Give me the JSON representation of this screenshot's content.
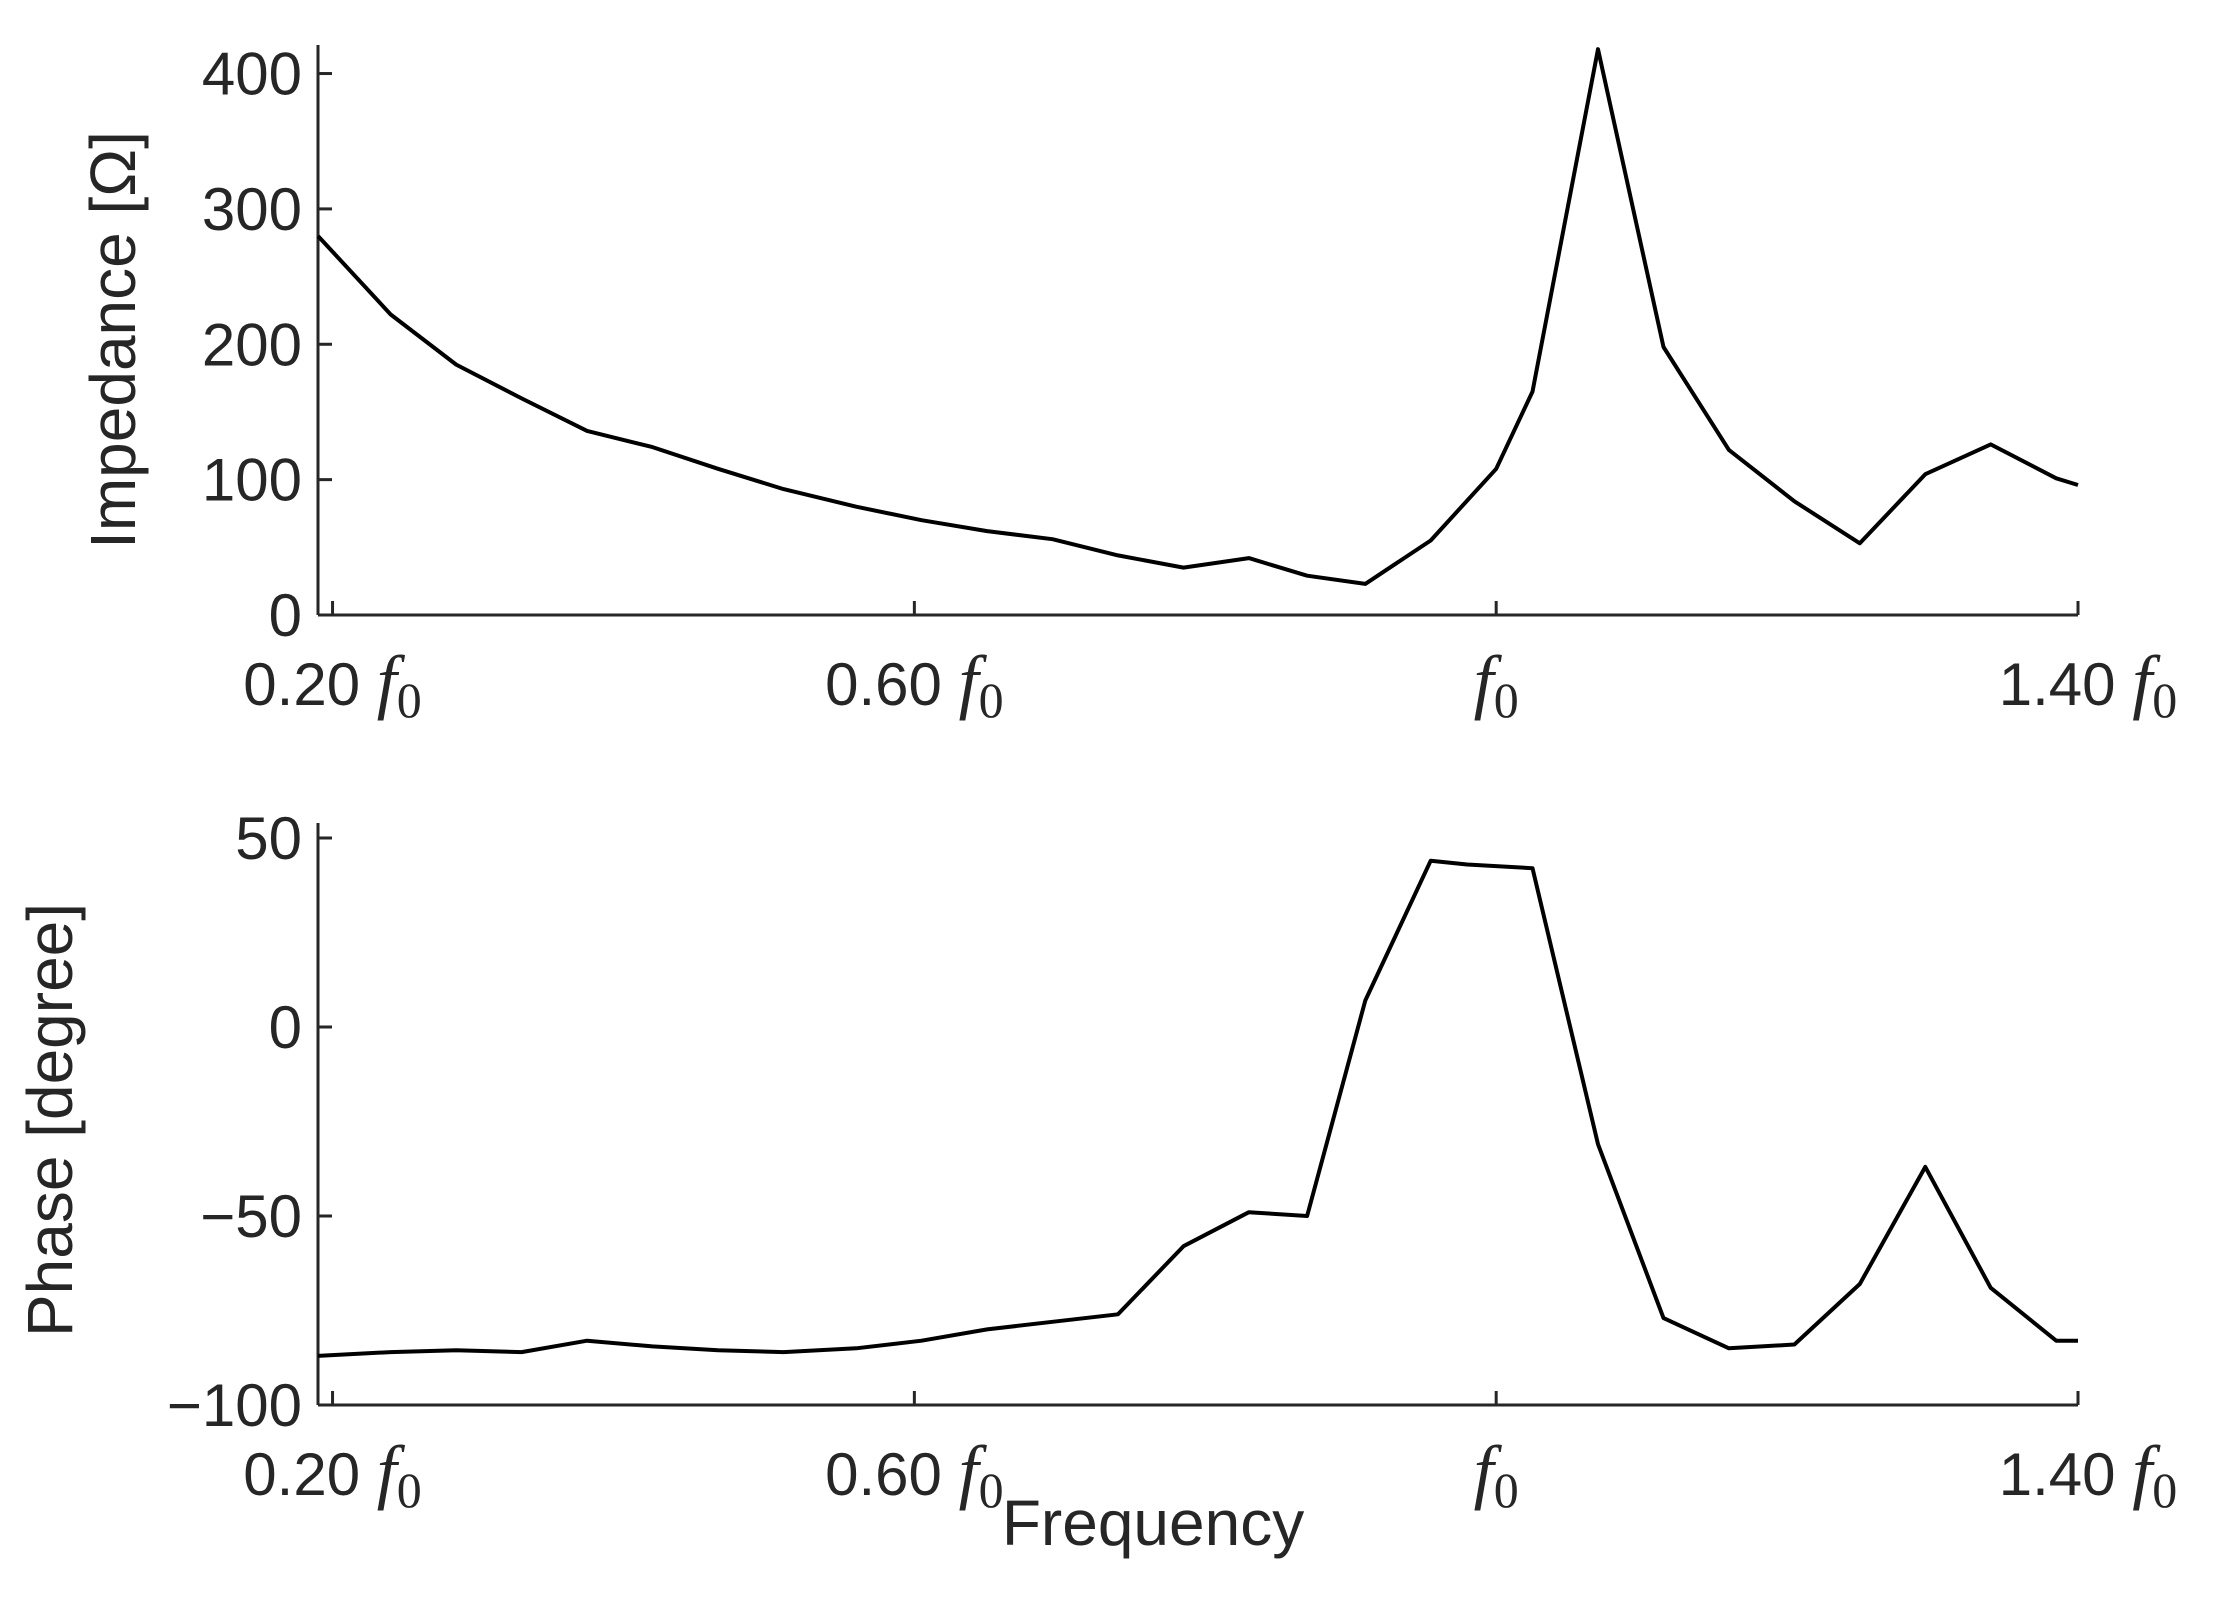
{
  "chart_data": [
    {
      "type": "line",
      "ylabel": "Impedance [Ω]",
      "xlabel": "",
      "xlim": [
        0.19,
        1.4
      ],
      "ylim": [
        0,
        410
      ],
      "yticks": [
        0,
        100,
        200,
        300,
        400
      ],
      "ytick_labels": [
        "0",
        "100",
        "200",
        "300",
        "400"
      ],
      "xticks": [
        0.2,
        0.6,
        1.0,
        1.4
      ],
      "xtick_labels": [
        {
          "num": "0.20",
          "f": "f",
          "sub": "0"
        },
        {
          "num": "0.60",
          "f": "f",
          "sub": "0"
        },
        {
          "num": "",
          "f": "f",
          "sub": "0"
        },
        {
          "num": "1.40",
          "f": "f",
          "sub": "0"
        }
      ],
      "grid": false,
      "series": [
        {
          "color": "#000000",
          "x": [
            0.19,
            0.24,
            0.285,
            0.33,
            0.375,
            0.42,
            0.465,
            0.51,
            0.56,
            0.605,
            0.65,
            0.695,
            0.74,
            0.785,
            0.83,
            0.87,
            0.91,
            0.955,
            1.0,
            1.025,
            1.07,
            1.115,
            1.16,
            1.205,
            1.25,
            1.295,
            1.34,
            1.385,
            1.4
          ],
          "y": [
            280,
            222,
            185,
            160,
            136,
            124,
            108,
            93,
            80,
            70,
            62,
            56,
            44,
            35,
            42,
            29,
            23,
            55,
            108,
            165,
            418,
            198,
            122,
            84,
            53,
            104,
            126,
            101,
            96
          ]
        }
      ]
    },
    {
      "type": "line",
      "ylabel": "Phase [degree]",
      "xlabel": "Frequency",
      "xlim": [
        0.19,
        1.4
      ],
      "ylim": [
        -100,
        50
      ],
      "yticks": [
        -100,
        -50,
        0,
        50
      ],
      "ytick_labels": [
        "−100",
        "−50",
        "0",
        "50"
      ],
      "xticks": [
        0.2,
        0.6,
        1.0,
        1.4
      ],
      "xtick_labels": [
        {
          "num": "0.20",
          "f": "f",
          "sub": "0"
        },
        {
          "num": "0.60",
          "f": "f",
          "sub": "0"
        },
        {
          "num": "",
          "f": "f",
          "sub": "0"
        },
        {
          "num": "1.40",
          "f": "f",
          "sub": "0"
        }
      ],
      "grid": false,
      "series": [
        {
          "color": "#000000",
          "x": [
            0.19,
            0.24,
            0.285,
            0.33,
            0.375,
            0.42,
            0.465,
            0.51,
            0.56,
            0.605,
            0.65,
            0.695,
            0.74,
            0.785,
            0.83,
            0.87,
            0.91,
            0.955,
            0.98,
            1.025,
            1.07,
            1.115,
            1.16,
            1.205,
            1.25,
            1.295,
            1.34,
            1.385,
            1.4
          ],
          "y": [
            -87,
            -86,
            -85.5,
            -86,
            -83,
            -84.5,
            -85.5,
            -86,
            -85,
            -83,
            -80,
            -78,
            -76,
            -58,
            -49,
            -50,
            7,
            44,
            43,
            42,
            -31,
            -77,
            -85,
            -84,
            -68,
            -37,
            -69,
            -83,
            -83
          ]
        }
      ]
    }
  ]
}
